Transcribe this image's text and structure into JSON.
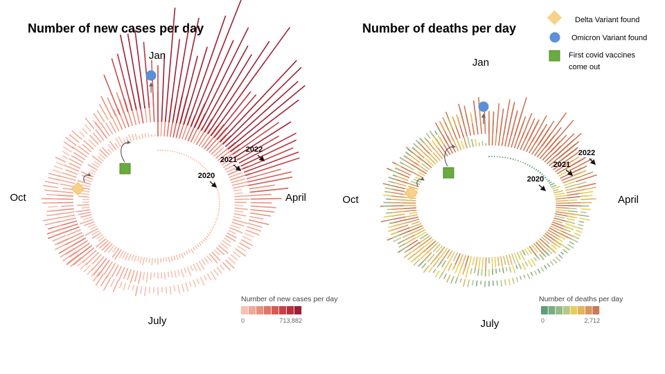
{
  "key": {
    "delta_label": "Delta Variant found",
    "omicron_label": "Omicron Variant found",
    "vaccine_label_line1": "First covid vaccines",
    "vaccine_label_line2": "come out",
    "colors": {
      "delta": "#f7d089",
      "omicron": "#5b8fd6",
      "vaccine": "#6aab3f"
    }
  },
  "chart_data": [
    {
      "type": "radial-bar",
      "title": "Number of new cases per day",
      "months": {
        "top": "Jan",
        "right": "April",
        "bottom": "July",
        "left": "Oct"
      },
      "years": [
        "2020",
        "2021",
        "2022"
      ],
      "legend": {
        "title": "Number of new cases per day",
        "min": "0",
        "max": "713,882"
      },
      "colors": [
        "#f7c1b1",
        "#f0a898",
        "#e98f80",
        "#e07568",
        "#d45c55",
        "#c74347",
        "#b8303d",
        "#9e1f33"
      ],
      "yearly_profile": {
        "2020": [
          0,
          0,
          0,
          200,
          2000,
          20000,
          30000,
          45000,
          60000,
          60000,
          50000,
          45000
        ],
        "2021": [
          200000,
          180000,
          100000,
          70000,
          60000,
          40000,
          30000,
          90000,
          150000,
          120000,
          80000,
          90000
        ],
        "2022": [
          500000,
          650000,
          350000,
          120000,
          60000,
          40000,
          30000,
          60000,
          80000,
          70000,
          50000,
          70000
        ]
      }
    },
    {
      "type": "radial-bar",
      "title": "Number of deaths per day",
      "months": {
        "top": "Jan",
        "right": "April",
        "bottom": "July",
        "left": "Oct"
      },
      "years": [
        "2020",
        "2021",
        "2022"
      ],
      "legend": {
        "title": "Number of deaths per day",
        "min": "0",
        "max": "2,712"
      },
      "colors": [
        "#5f9e7c",
        "#7aac84",
        "#97b98c",
        "#b5c78a",
        "#e4cf5e",
        "#e2b35a",
        "#d6955e",
        "#c97858"
      ],
      "yearly_profile": {
        "2020": [
          0,
          0,
          30,
          900,
          1200,
          600,
          600,
          900,
          800,
          700,
          800,
          1200
        ],
        "2021": [
          2200,
          2000,
          1600,
          800,
          600,
          350,
          300,
          700,
          1200,
          1400,
          1100,
          1100
        ],
        "2022": [
          1700,
          2400,
          1500,
          600,
          300,
          250,
          300,
          400,
          450,
          350,
          300,
          350
        ]
      }
    }
  ]
}
